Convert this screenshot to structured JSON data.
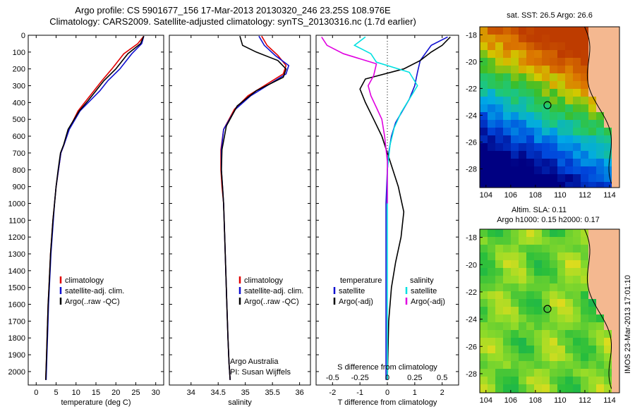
{
  "header": {
    "line1": "Argo profile: CS 5901677_156 17-Mar-2013 20130320_246 23.25S 108.976E",
    "line2": "Climatology: CARS2009. Satellite-adjusted climatology: synTS_20130316.nc (1.7d earlier)"
  },
  "colors": {
    "climatology": "#e00000",
    "satellite": "#1010d0",
    "argo": "#000000",
    "sal_sat": "#00e0e0",
    "sal_argo": "#e000e0"
  },
  "chart_data": [
    {
      "type": "line",
      "name": "temperature_profile",
      "xlabel": "temperature (deg C)",
      "ylabel": "",
      "xlim": [
        -2,
        32
      ],
      "ylim": [
        2080,
        0
      ],
      "xticks": [
        0,
        5,
        10,
        15,
        20,
        25,
        30
      ],
      "yticks": [
        0,
        100,
        200,
        300,
        400,
        500,
        600,
        700,
        800,
        900,
        1000,
        1100,
        1200,
        1300,
        1400,
        1500,
        1600,
        1700,
        1800,
        1900,
        2000
      ],
      "legend": [
        "climatology",
        "satellite-adj. clim.",
        "Argo(..raw -QC)"
      ],
      "series": [
        {
          "name": "climatology",
          "color": "#e00000",
          "x": [
            27,
            25.5,
            22,
            19,
            16.5,
            14.5,
            12.5,
            10.5,
            8.2,
            7,
            6.2,
            5.6,
            5.0,
            4.6,
            4.2,
            3.9,
            3.6,
            3.4,
            3.2,
            3.0,
            2.8,
            2.6,
            2.4
          ],
          "y": [
            5,
            50,
            110,
            200,
            270,
            330,
            390,
            450,
            560,
            650,
            700,
            800,
            900,
            1000,
            1100,
            1200,
            1300,
            1400,
            1500,
            1600,
            1750,
            1900,
            2050
          ]
        },
        {
          "name": "satellite-adj. clim.",
          "color": "#1010d0",
          "x": [
            27,
            26.5,
            24,
            21,
            18,
            16,
            13.5,
            11,
            8.3,
            7,
            6.2,
            5.6,
            5.0,
            4.6,
            4.3,
            4.0,
            3.7,
            3.5,
            3.3,
            3.1,
            2.9,
            2.7,
            2.5
          ],
          "y": [
            5,
            50,
            110,
            200,
            270,
            330,
            390,
            450,
            560,
            650,
            700,
            800,
            900,
            1000,
            1100,
            1200,
            1300,
            1400,
            1500,
            1600,
            1750,
            1900,
            2050
          ]
        },
        {
          "name": "Argo(..raw -QC)",
          "color": "#000000",
          "x": [
            27,
            26.2,
            23,
            20,
            17,
            15,
            13,
            10.8,
            8.0,
            6.9,
            6.1,
            5.5,
            5.0,
            4.6,
            4.2,
            3.9,
            3.6,
            3.4,
            3.2,
            3.0,
            2.8,
            2.6,
            2.4
          ],
          "y": [
            5,
            50,
            110,
            200,
            270,
            330,
            390,
            450,
            560,
            650,
            700,
            800,
            900,
            1000,
            1100,
            1200,
            1300,
            1400,
            1500,
            1600,
            1750,
            1900,
            2050
          ]
        }
      ]
    },
    {
      "type": "line",
      "name": "salinity_profile",
      "xlabel": "salinity",
      "xlim": [
        33.6,
        36.2
      ],
      "ylim": [
        2080,
        0
      ],
      "xticks": [
        34,
        34.5,
        35,
        35.5,
        36
      ],
      "legend": [
        "climatology",
        "satellite-adj. clim.",
        "Argo(..raw -QC)"
      ],
      "annotation": [
        "Argo Australia",
        "PI: Susan Wijffels"
      ],
      "series": [
        {
          "name": "climatology",
          "color": "#e00000",
          "x": [
            35.3,
            35.4,
            35.6,
            35.75,
            35.7,
            35.35,
            35.05,
            34.8,
            34.6,
            34.55,
            34.55,
            34.57,
            34.6,
            34.62,
            34.64,
            34.66,
            34.68,
            34.7,
            34.72
          ],
          "y": [
            5,
            60,
            120,
            180,
            230,
            300,
            360,
            440,
            560,
            680,
            800,
            900,
            1000,
            1200,
            1400,
            1600,
            1800,
            1950,
            2050
          ]
        },
        {
          "name": "satellite-adj. clim.",
          "color": "#1010d0",
          "x": [
            35.25,
            35.35,
            35.55,
            35.8,
            35.75,
            35.4,
            35.1,
            34.82,
            34.6,
            34.56,
            34.56,
            34.58,
            34.6,
            34.62,
            34.64,
            34.66,
            34.68,
            34.7,
            34.72
          ],
          "y": [
            5,
            60,
            120,
            180,
            230,
            300,
            360,
            440,
            560,
            680,
            800,
            900,
            1000,
            1200,
            1400,
            1600,
            1800,
            1950,
            2050
          ]
        },
        {
          "name": "Argo(..raw -QC)",
          "color": "#000000",
          "x": [
            34.9,
            34.95,
            35.2,
            35.6,
            35.75,
            35.7,
            35.2,
            34.85,
            34.65,
            34.57,
            34.56,
            34.58,
            34.6,
            34.62,
            34.64,
            34.66,
            34.68,
            34.7,
            34.72
          ],
          "y": [
            5,
            60,
            100,
            150,
            200,
            250,
            330,
            420,
            540,
            680,
            800,
            900,
            1000,
            1200,
            1400,
            1600,
            1800,
            1950,
            2050
          ]
        }
      ]
    },
    {
      "type": "line",
      "name": "difference_profile",
      "xlabel": "T difference from climatology",
      "xlabel_top": "S difference from climatology",
      "xlim": [
        -2.6,
        2.6
      ],
      "ylim": [
        2080,
        0
      ],
      "xticks_T": [
        -2,
        -1,
        0,
        1,
        2
      ],
      "xticks_S": [
        "-0.5",
        "-0.25",
        "0",
        "0.25",
        "0.5"
      ],
      "legend_temperature": {
        "header": "temperature",
        "items": [
          "satellite",
          "Argo(-adj)"
        ]
      },
      "legend_salinity": {
        "header": "salinity",
        "items": [
          "satellite",
          "Argo(-adj)"
        ]
      },
      "series": [
        {
          "name": "T satellite",
          "color": "#1010d0",
          "x": [
            2.2,
            1.6,
            1.2,
            1.1,
            1.0,
            0.8,
            0.55,
            0.3,
            0.15,
            0.05,
            0.0,
            -0.05,
            -0.05,
            -0.05,
            -0.05,
            -0.05
          ],
          "y": [
            10,
            60,
            150,
            220,
            300,
            380,
            450,
            520,
            600,
            700,
            800,
            1000,
            1300,
            1600,
            1900,
            2050
          ]
        },
        {
          "name": "T Argo(-adj)",
          "color": "#000000",
          "x": [
            2.3,
            2.0,
            1.6,
            1.2,
            0.6,
            -0.8,
            -1.0,
            -0.8,
            -0.5,
            -0.2,
            0.1,
            0.4,
            0.6,
            0.5,
            0.3,
            0.15,
            0.05,
            0.0
          ],
          "y": [
            10,
            60,
            100,
            150,
            200,
            260,
            320,
            400,
            500,
            600,
            750,
            900,
            1050,
            1200,
            1350,
            1500,
            1700,
            2050
          ]
        },
        {
          "name": "S satellite",
          "color": "#00e0e0",
          "x": [
            -0.8,
            -1.2,
            -0.6,
            -0.4,
            0.8,
            1.1,
            0.8,
            0.5,
            0.25,
            0.1,
            0.0,
            0.0,
            0.0
          ],
          "y": [
            10,
            60,
            110,
            160,
            220,
            300,
            380,
            460,
            550,
            650,
            800,
            1200,
            2050
          ]
        },
        {
          "name": "S Argo(-adj)",
          "color": "#e000e0",
          "x": [
            -2.4,
            -2.2,
            -1.6,
            -0.4,
            -0.5,
            -0.7,
            -0.6,
            -0.4,
            -0.2,
            -0.1,
            0.0,
            0.0
          ],
          "y": [
            10,
            60,
            110,
            170,
            240,
            300,
            360,
            430,
            500,
            600,
            750,
            1000
          ]
        }
      ]
    },
    {
      "type": "heatmap",
      "name": "sst_map",
      "title": "sat. SST: 26.5 Argo: 26.6",
      "xlim": [
        103.5,
        114.8
      ],
      "ylim": [
        -29.4,
        -17.4
      ],
      "xticks": [
        104,
        106,
        108,
        110,
        112,
        114
      ],
      "yticks": [
        -28,
        -26,
        -24,
        -22,
        -20,
        -18
      ],
      "marker": {
        "lon": 108.976,
        "lat": -23.25
      }
    },
    {
      "type": "heatmap",
      "name": "sla_map",
      "title_lines": [
        "Altim. SLA: 0.11",
        "Argo h1000: 0.15 h2000: 0.17"
      ],
      "xlim": [
        103.5,
        114.8
      ],
      "ylim": [
        -29.4,
        -17.4
      ],
      "xticks": [
        104,
        106,
        108,
        110,
        112,
        114
      ],
      "yticks": [
        -28,
        -26,
        -24,
        -22,
        -20,
        -18
      ],
      "marker": {
        "lon": 108.976,
        "lat": -23.25
      },
      "side_label": "IMOS 23-Mar-2013 17:01:10"
    }
  ]
}
